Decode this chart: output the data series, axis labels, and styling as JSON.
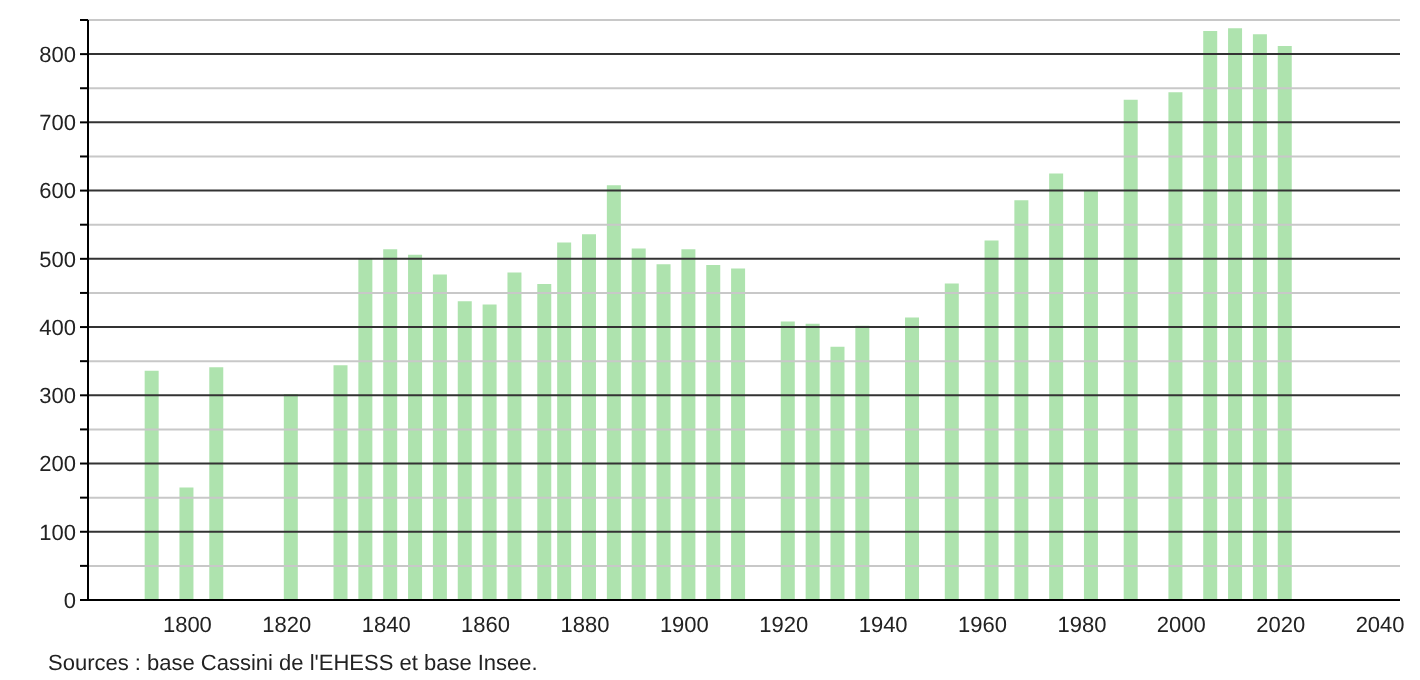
{
  "chart_data": {
    "type": "bar",
    "color": "#aee3ae",
    "x": [
      1793,
      1800,
      1806,
      1821,
      1831,
      1836,
      1841,
      1846,
      1851,
      1856,
      1861,
      1866,
      1872,
      1876,
      1881,
      1886,
      1891,
      1896,
      1901,
      1906,
      1911,
      1921,
      1926,
      1931,
      1936,
      1946,
      1954,
      1962,
      1968,
      1975,
      1982,
      1990,
      1999,
      2006,
      2011,
      2016,
      2021
    ],
    "values": [
      336,
      165,
      341,
      302,
      344,
      500,
      514,
      506,
      477,
      438,
      433,
      480,
      463,
      524,
      536,
      608,
      515,
      492,
      514,
      491,
      486,
      408,
      405,
      371,
      402,
      414,
      464,
      527,
      586,
      625,
      600,
      733,
      744,
      834,
      838,
      829,
      812
    ],
    "xlim": [
      1780,
      2044
    ],
    "xticks": [
      1800,
      1820,
      1840,
      1860,
      1880,
      1900,
      1920,
      1940,
      1960,
      1980,
      2000,
      2020,
      2040
    ],
    "ylim": [
      0,
      850
    ],
    "yticks": [
      0,
      {
        "value": 50,
        "label": null
      },
      100,
      {
        "value": 150,
        "label": null
      },
      200,
      {
        "value": 250,
        "label": null
      },
      300,
      {
        "value": 350,
        "label": null
      },
      400,
      {
        "value": 450,
        "label": null
      },
      500,
      {
        "value": 550,
        "label": null
      },
      600,
      {
        "value": 650,
        "label": null
      },
      700,
      {
        "value": 750,
        "label": null
      },
      800,
      {
        "value": 850,
        "label": null
      }
    ],
    "grid": "y",
    "legend": false,
    "annotations": [
      "Sources : base Cassini de l'EHESS et base Insee."
    ]
  }
}
